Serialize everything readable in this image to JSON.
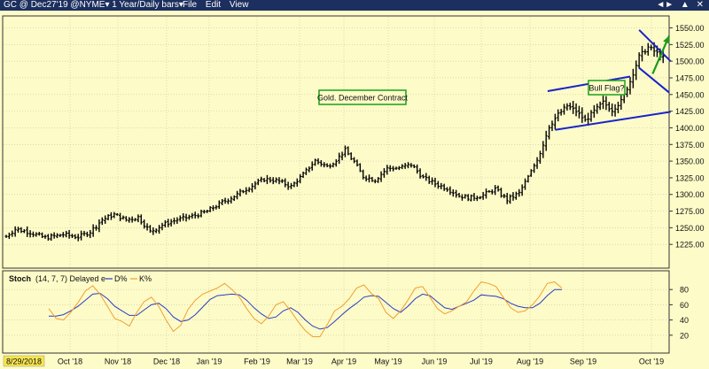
{
  "window": {
    "title": "GC @ Dec27'19 @NYME▾ 1 Year/Daily bars▾",
    "menus": [
      "File",
      "Edit",
      "View"
    ],
    "controls": [
      "◄►",
      "▲",
      "✕"
    ]
  },
  "chart_data": [
    {
      "type": "ohlc-bar",
      "title": "Gold. December Contract",
      "annotation_right": "Bull Flag?",
      "ylim": [
        1200,
        1560
      ],
      "y_ticks": [
        "1550.00",
        "1525.00",
        "1500.00",
        "1475.00",
        "1450.00",
        "1425.00",
        "1400.00",
        "1375.00",
        "1350.00",
        "1325.00",
        "1300.00",
        "1275.00",
        "1250.00",
        "1225.00"
      ],
      "x_start_label": "8/29/2018",
      "x_months": [
        "Oct '18",
        "Nov '18",
        "Dec '18",
        "Jan '19",
        "Feb '19",
        "Mar '19",
        "Apr '19",
        "May '19",
        "Jun '19",
        "Jul '19",
        "Aug '19",
        "Sep '19",
        "Oct '19"
      ],
      "price_path": [
        [
          0,
          1237
        ],
        [
          3,
          1248
        ],
        [
          8,
          1243
        ],
        [
          13,
          1235
        ],
        [
          19,
          1240
        ],
        [
          24,
          1236
        ],
        [
          28,
          1244
        ],
        [
          32,
          1262
        ],
        [
          36,
          1270
        ],
        [
          40,
          1262
        ],
        [
          44,
          1266
        ],
        [
          48,
          1244
        ],
        [
          52,
          1254
        ],
        [
          57,
          1262
        ],
        [
          62,
          1267
        ],
        [
          67,
          1275
        ],
        [
          72,
          1288
        ],
        [
          77,
          1300
        ],
        [
          81,
          1311
        ],
        [
          86,
          1323
        ],
        [
          90,
          1321
        ],
        [
          95,
          1312
        ],
        [
          99,
          1330
        ],
        [
          103,
          1351
        ],
        [
          107,
          1342
        ],
        [
          110,
          1352
        ],
        [
          113,
          1366
        ],
        [
          116,
          1349
        ],
        [
          119,
          1327
        ],
        [
          123,
          1322
        ],
        [
          127,
          1339
        ],
        [
          131,
          1340
        ],
        [
          135,
          1345
        ],
        [
          139,
          1325
        ],
        [
          143,
          1316
        ],
        [
          147,
          1309
        ],
        [
          151,
          1298
        ],
        [
          155,
          1295
        ],
        [
          159,
          1299
        ],
        [
          163,
          1308
        ],
        [
          167,
          1292
        ],
        [
          171,
          1302
        ],
        [
          175,
          1334
        ],
        [
          178,
          1363
        ],
        [
          181,
          1402
        ],
        [
          184,
          1420
        ],
        [
          187,
          1433
        ],
        [
          190,
          1425
        ],
        [
          193,
          1411
        ],
        [
          196,
          1425
        ],
        [
          199,
          1438
        ],
        [
          202,
          1427
        ],
        [
          205,
          1440
        ],
        [
          208,
          1470
        ],
        [
          211,
          1507
        ],
        [
          214,
          1521
        ],
        [
          217,
          1512
        ],
        [
          219,
          1505
        ]
      ],
      "channels": [
        {
          "name": "rising-channel-upper",
          "from": [
            180.5,
            1455
          ],
          "to": [
            208,
            1477
          ]
        },
        {
          "name": "rising-channel-lower",
          "from": [
            183,
            1397
          ],
          "to": [
            221.5,
            1424
          ]
        },
        {
          "name": "flag-upper",
          "from": [
            211,
            1547
          ],
          "to": [
            221.5,
            1500
          ]
        },
        {
          "name": "flag-lower",
          "from": [
            211,
            1490
          ],
          "to": [
            221,
            1453
          ]
        }
      ],
      "arrow": {
        "from": [
          215.5,
          1481
        ],
        "to": [
          221,
          1538
        ],
        "color": "#1a9b1a"
      }
    },
    {
      "type": "line",
      "title": "Stoch",
      "legend": {
        "params": "(14, 7, 7) Delayed e",
        "series": [
          "D%",
          "K%"
        ]
      },
      "ylim": [
        0,
        100
      ],
      "y_ticks": [
        "80",
        "60",
        "40",
        "20"
      ],
      "series": [
        {
          "name": "D%",
          "color": "#2b3cc4",
          "values": [
            45,
            45,
            47,
            52,
            58,
            66,
            74,
            75,
            68,
            58,
            52,
            46,
            46,
            53,
            60,
            62,
            55,
            44,
            38,
            40,
            47,
            57,
            67,
            72,
            73,
            74,
            73,
            66,
            56,
            48,
            42,
            44,
            52,
            56,
            50,
            40,
            32,
            28,
            30,
            38,
            47,
            55,
            62,
            70,
            72,
            71,
            63,
            55,
            50,
            58,
            68,
            74,
            72,
            64,
            56,
            54,
            58,
            62,
            66,
            73,
            72,
            71,
            68,
            62,
            58,
            56,
            56,
            62,
            72,
            80,
            80
          ]
        },
        {
          "name": "K%",
          "color": "#f0a030",
          "values": [
            55,
            42,
            40,
            50,
            63,
            78,
            85,
            74,
            58,
            42,
            38,
            32,
            50,
            64,
            70,
            58,
            40,
            25,
            33,
            54,
            66,
            74,
            78,
            82,
            88,
            80,
            70,
            55,
            42,
            35,
            45,
            60,
            64,
            52,
            38,
            26,
            18,
            18,
            34,
            52,
            58,
            68,
            82,
            86,
            75,
            68,
            50,
            42,
            52,
            66,
            82,
            84,
            70,
            55,
            48,
            52,
            58,
            64,
            78,
            90,
            88,
            84,
            70,
            56,
            50,
            52,
            60,
            72,
            88,
            90,
            82
          ]
        }
      ]
    }
  ]
}
